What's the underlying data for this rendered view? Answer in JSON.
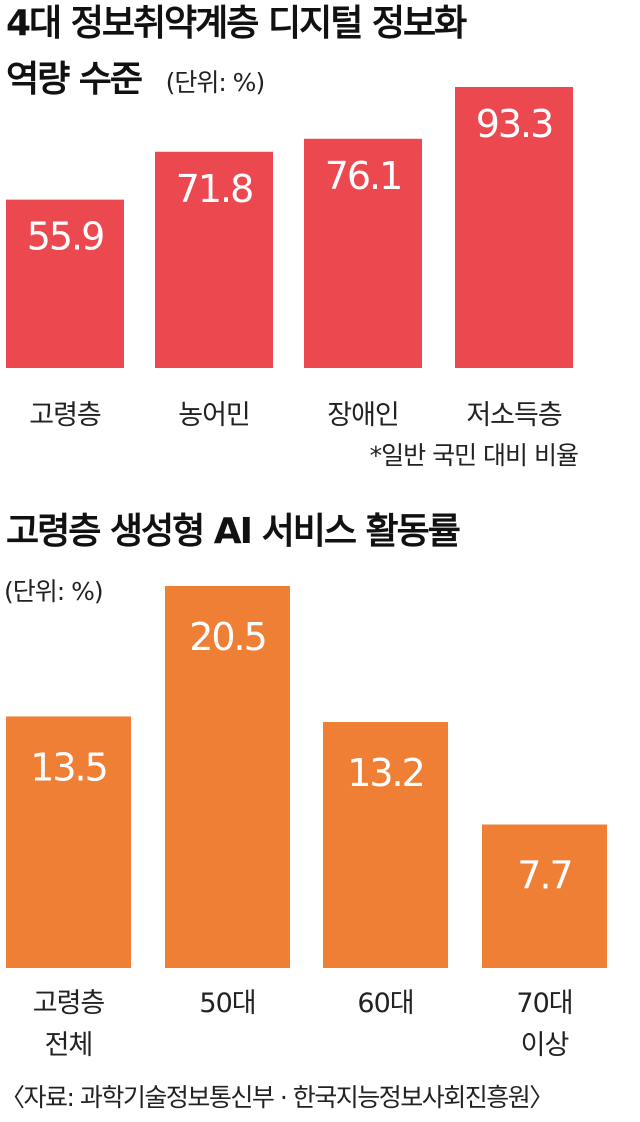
{
  "charts": [
    {
      "title_line1": "4대 정보취약계층 디지털 정보화",
      "title_line2": "역량 수준",
      "unit": "(단위: %)",
      "note": "*일반 국민 대비 비율"
    },
    {
      "title": "고령층 생성형 AI 서비스 활동률",
      "unit": "(단위: %)"
    }
  ],
  "source": "〈자료: 과학기술정보통신부 · 한국지능정보사회진흥원〉",
  "colors": {
    "chart1_bar": "#ec4850",
    "chart2_bar": "#f07f36"
  },
  "chart_data": [
    {
      "type": "bar",
      "title": "4대 정보취약계층 디지털 정보화 역량 수준",
      "categories": [
        [
          "고령층"
        ],
        [
          "농어민"
        ],
        [
          "장애인"
        ],
        [
          "저소득층"
        ]
      ],
      "values": [
        55.9,
        71.8,
        76.1,
        93.3
      ],
      "value_labels": [
        "55.9",
        "71.8",
        "76.1",
        "93.3"
      ],
      "unit": "%"
    },
    {
      "type": "bar",
      "title": "고령층 생성형 AI 서비스 활동률",
      "categories": [
        [
          "고령층",
          "전체"
        ],
        [
          "50대"
        ],
        [
          "60대"
        ],
        [
          "70대",
          "이상"
        ]
      ],
      "values": [
        13.5,
        20.5,
        13.2,
        7.7
      ],
      "value_labels": [
        "13.5",
        "20.5",
        "13.2",
        "7.7"
      ],
      "unit": "%"
    }
  ]
}
